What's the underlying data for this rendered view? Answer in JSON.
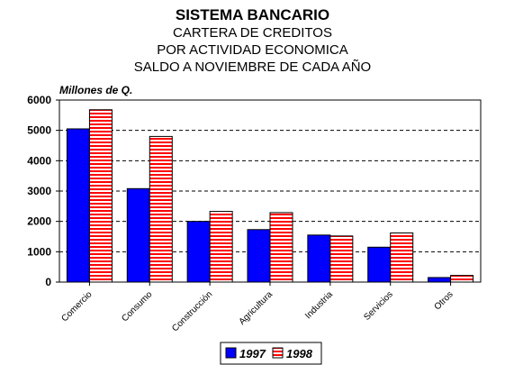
{
  "chart_data": {
    "type": "bar",
    "title": "SISTEMA BANCARIO",
    "subtitle_lines": [
      "CARTERA DE CREDITOS",
      "POR ACTIVIDAD ECONOMICA",
      "SALDO A NOVIEMBRE DE CADA AÑO"
    ],
    "ylabel": "Millones de Q.",
    "xlabel": "",
    "ylim": [
      0,
      6000
    ],
    "yticks": [
      0,
      1000,
      2000,
      3000,
      4000,
      5000,
      6000
    ],
    "grid": "horizontal dashed",
    "legend_position": "bottom",
    "categories": [
      "Comercio",
      "Consumo",
      "Construcción",
      "Agricultura",
      "Industria",
      "Servicios",
      "Otros"
    ],
    "series": [
      {
        "name": "1997",
        "color": "#0000ff",
        "values": [
          5050,
          3080,
          2000,
          1730,
          1550,
          1150,
          150
        ]
      },
      {
        "name": "1998",
        "color": "#ff0000",
        "pattern": "horizontal-stripes",
        "values": [
          5680,
          4800,
          2330,
          2290,
          1520,
          1620,
          220
        ]
      }
    ]
  }
}
